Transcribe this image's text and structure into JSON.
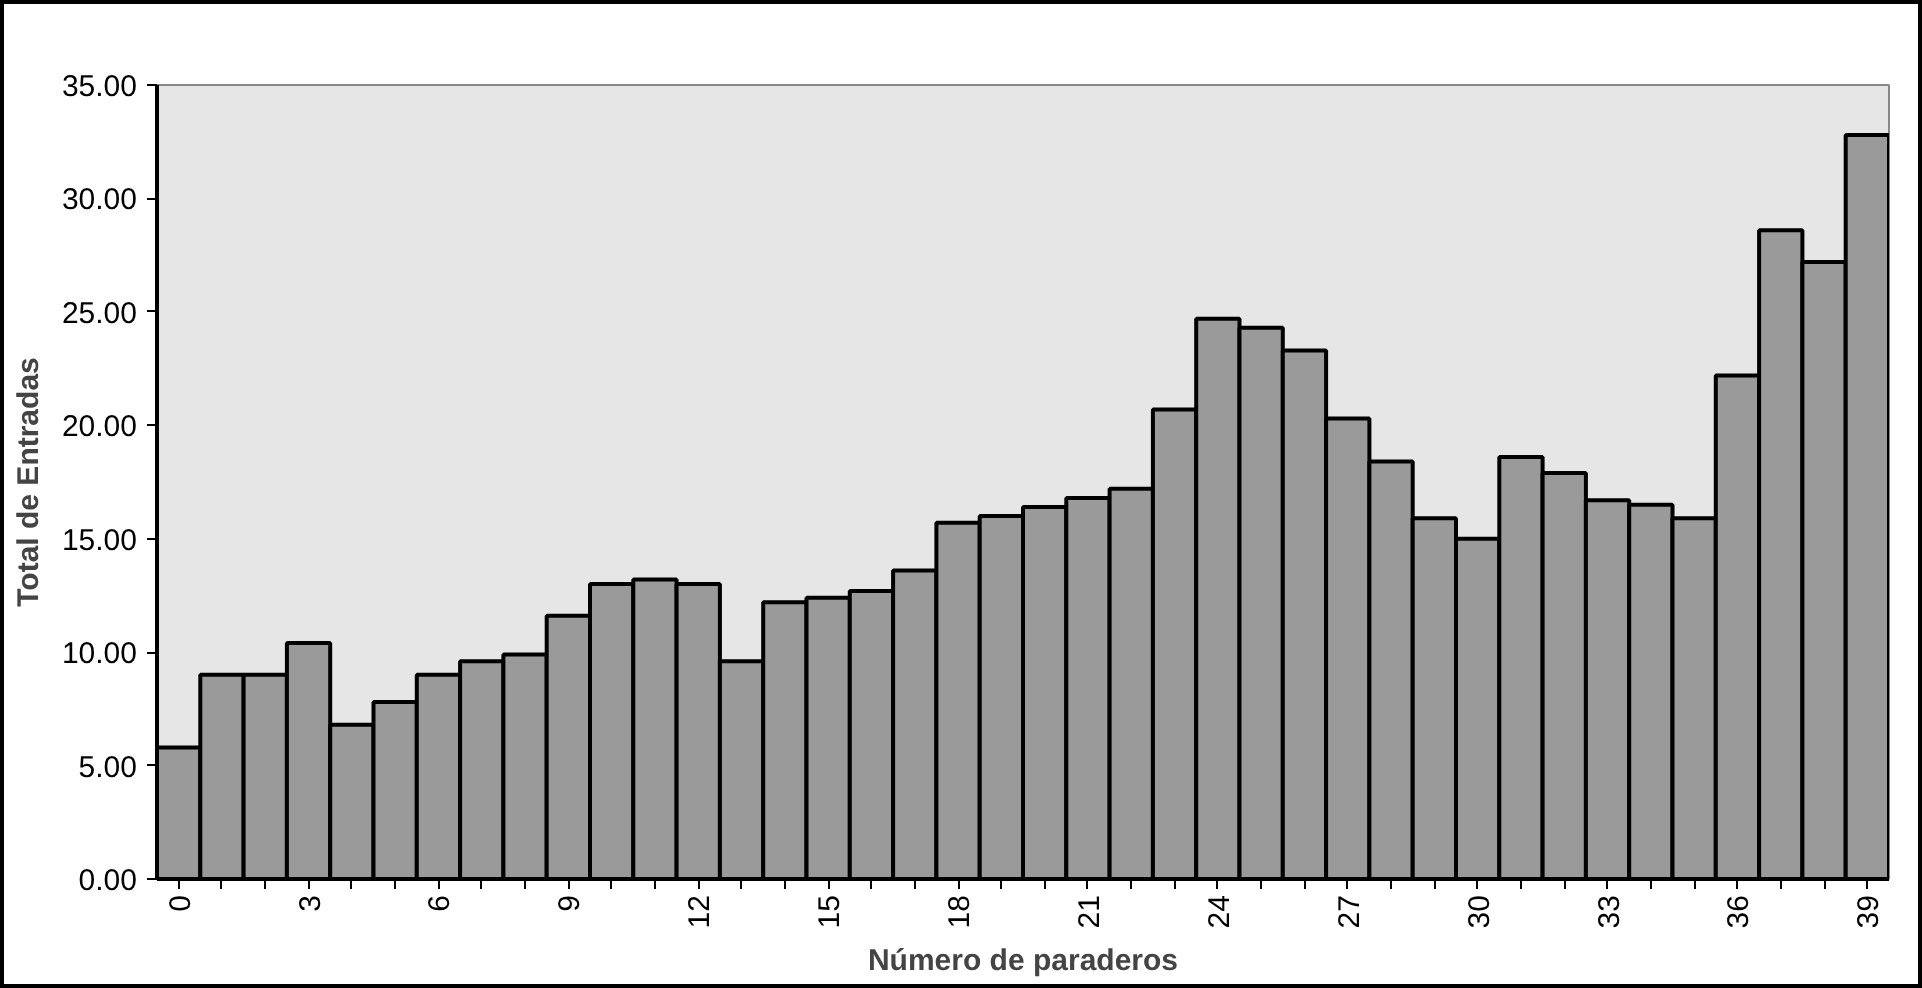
{
  "chart_data": {
    "type": "bar",
    "xlabel": "Número de paraderos",
    "ylabel": "Total de Entradas",
    "categories": [
      "0",
      null,
      null,
      "3",
      null,
      null,
      "6",
      null,
      null,
      "9",
      null,
      null,
      "12",
      null,
      null,
      "15",
      null,
      null,
      "18",
      null,
      null,
      "21",
      null,
      null,
      "24",
      null,
      null,
      "27",
      null,
      null,
      "30",
      null,
      null,
      "33",
      null,
      null,
      "36",
      null,
      null,
      "39"
    ],
    "values": [
      5.8,
      9.0,
      9.0,
      10.4,
      6.8,
      7.8,
      9.0,
      9.6,
      9.9,
      11.6,
      13.0,
      13.2,
      13.0,
      9.6,
      12.2,
      12.4,
      12.7,
      13.6,
      15.7,
      16.0,
      16.4,
      16.8,
      17.2,
      20.7,
      24.7,
      24.3,
      23.3,
      20.3,
      18.4,
      15.9,
      15.0,
      18.6,
      17.9,
      16.7,
      16.5,
      15.9,
      22.2,
      28.6,
      27.2,
      32.8
    ],
    "color": "#9a9a9a",
    "ylim": [
      0,
      35
    ],
    "yticks": [
      {
        "value": 0,
        "label": "0.00"
      },
      {
        "value": 5,
        "label": "5.00"
      },
      {
        "value": 10,
        "label": "10.00"
      },
      {
        "value": 15,
        "label": "15.00"
      },
      {
        "value": 20,
        "label": "20.00"
      },
      {
        "value": 25,
        "label": "25.00"
      },
      {
        "value": 30,
        "label": "30.00"
      },
      {
        "value": 35,
        "label": "35.00"
      }
    ],
    "grid": false
  }
}
